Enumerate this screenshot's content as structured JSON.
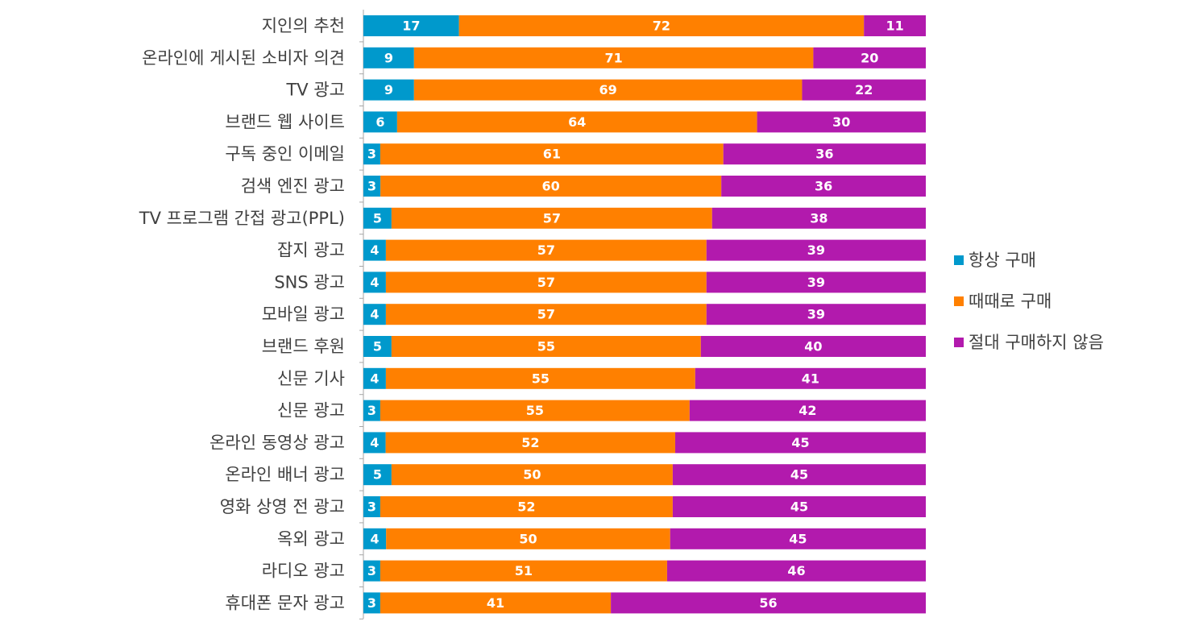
{
  "chart_data": {
    "type": "bar",
    "orientation": "horizontal",
    "stacked": true,
    "normalized": true,
    "categories": [
      "지인의 추천",
      "온라인에 게시된 소비자 의견",
      "TV 광고",
      "브랜드 웹 사이트",
      "구독 중인 이메일",
      "검색 엔진 광고",
      "TV 프로그램 간접 광고(PPL)",
      "잡지 광고",
      "SNS 광고",
      "모바일 광고",
      "브랜드 후원",
      "신문 기사",
      "신문 광고",
      "온라인 동영상 광고",
      "온라인 배너 광고",
      "영화 상영 전 광고",
      "옥외 광고",
      "라디오 광고",
      "휴대폰 문자 광고"
    ],
    "series": [
      {
        "name": "항상 구매",
        "color": "#0099cc",
        "values": [
          17,
          9,
          9,
          6,
          3,
          3,
          5,
          4,
          4,
          4,
          5,
          4,
          3,
          4,
          5,
          3,
          4,
          3,
          3
        ]
      },
      {
        "name": "때때로 구매",
        "color": "#ff8000",
        "values": [
          72,
          71,
          69,
          64,
          61,
          60,
          57,
          57,
          57,
          57,
          55,
          55,
          55,
          52,
          50,
          52,
          50,
          51,
          41
        ]
      },
      {
        "name": "절대 구매하지 않음",
        "color": "#b21aad",
        "values": [
          11,
          20,
          22,
          30,
          36,
          36,
          38,
          39,
          39,
          39,
          40,
          41,
          42,
          45,
          45,
          45,
          45,
          46,
          56
        ]
      }
    ],
    "title": "",
    "xlabel": "",
    "ylabel": "",
    "legend": "right",
    "grid": false,
    "data_labels": true
  }
}
